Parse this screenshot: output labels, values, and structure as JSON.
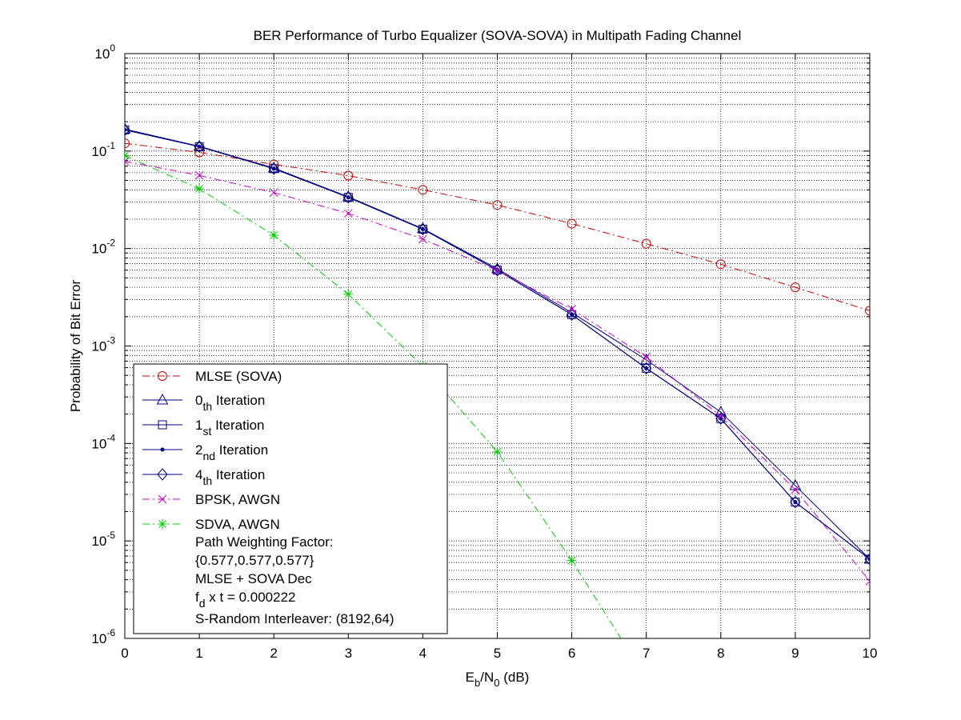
{
  "chart_data": {
    "type": "line",
    "title": "BER Performance of Turbo Equalizer (SOVA-SOVA) in Multipath Fading Channel",
    "xlabel": {
      "main": "E",
      "sub1": "b",
      "mid": "/N",
      "sub2": "0",
      "tail": " (dB)"
    },
    "ylabel": "Probability of Bit Error",
    "xlim": [
      0,
      10
    ],
    "ylim": [
      1e-06,
      1
    ],
    "yscale": "log",
    "grid": true,
    "legend_position": "lower-left",
    "x_ticks": [
      "0",
      "1",
      "2",
      "3",
      "4",
      "5",
      "6",
      "7",
      "8",
      "9",
      "10"
    ],
    "y_ticks": [
      {
        "base": "10",
        "exp": "0",
        "value": 1
      },
      {
        "base": "10",
        "exp": "-1",
        "value": 0.1
      },
      {
        "base": "10",
        "exp": "-2",
        "value": 0.01
      },
      {
        "base": "10",
        "exp": "-3",
        "value": 0.001
      },
      {
        "base": "10",
        "exp": "-4",
        "value": 0.0001
      },
      {
        "base": "10",
        "exp": "-5",
        "value": 1e-05
      },
      {
        "base": "10",
        "exp": "-6",
        "value": 1e-06
      }
    ],
    "series": [
      {
        "name": "MLSE (SOVA)",
        "color": "#cc0000",
        "dash": "dashdot",
        "marker": "circle",
        "x": [
          0,
          1,
          2,
          3,
          4,
          5,
          6,
          7,
          8,
          9,
          10
        ],
        "y": [
          0.12,
          0.097,
          0.073,
          0.056,
          0.04,
          0.028,
          0.018,
          0.0112,
          0.0069,
          0.004,
          0.0023
        ]
      },
      {
        "name": "0th Iteration",
        "label_main": "0",
        "label_sub": "th",
        "label_tail": " Iteration",
        "color": "#000080",
        "dash": "solid",
        "marker": "triangle",
        "x": [
          0,
          1,
          2,
          3,
          4,
          5,
          6,
          7,
          8,
          9,
          10
        ],
        "y": [
          0.168,
          0.112,
          0.067,
          0.034,
          0.016,
          0.0062,
          0.0022,
          0.00072,
          0.00021,
          3.7e-05,
          6.5e-06
        ]
      },
      {
        "name": "1st Iteration",
        "label_main": "1",
        "label_sub": "st",
        "label_tail": " Iteration",
        "color": "#000080",
        "dash": "solid",
        "marker": "square",
        "x": [
          0,
          1,
          2,
          3,
          4,
          5,
          6,
          7,
          8,
          9,
          10
        ],
        "y": [
          0.165,
          0.111,
          0.066,
          0.0335,
          0.0158,
          0.006,
          0.0021,
          0.00059,
          0.00018,
          2.5e-05,
          6.5e-06
        ]
      },
      {
        "name": "2nd Iteration",
        "label_main": "2",
        "label_sub": "nd",
        "label_tail": " Iteration",
        "color": "#000080",
        "dash": "solid",
        "marker": "dot",
        "x": [
          0,
          1,
          2,
          3,
          4,
          5,
          6,
          7,
          8,
          9,
          10
        ],
        "y": [
          0.165,
          0.111,
          0.066,
          0.0335,
          0.0158,
          0.006,
          0.0021,
          0.00059,
          0.00018,
          2.5e-05,
          6.5e-06
        ]
      },
      {
        "name": "4th Iteration",
        "label_main": "4",
        "label_sub": "th",
        "label_tail": " Iteration",
        "color": "#000080",
        "dash": "solid",
        "marker": "diamond",
        "x": [
          0,
          1,
          2,
          3,
          4,
          5,
          6,
          7,
          8,
          9,
          10
        ],
        "y": [
          0.165,
          0.111,
          0.066,
          0.0335,
          0.0158,
          0.006,
          0.0021,
          0.00059,
          0.00018,
          2.5e-05,
          6.5e-06
        ]
      },
      {
        "name": "BPSK, AWGN",
        "color": "#cc00cc",
        "dash": "dashdot",
        "marker": "x",
        "x": [
          0,
          1,
          2,
          3,
          4,
          5,
          6,
          7,
          8,
          9,
          10
        ],
        "y": [
          0.0786,
          0.0563,
          0.0375,
          0.0229,
          0.0125,
          0.00595,
          0.00239,
          0.000773,
          0.000191,
          3.36e-05,
          3.87e-06
        ]
      },
      {
        "name": "SDVA, AWGN",
        "color": "#00cc00",
        "dash": "dashdot",
        "marker": "star",
        "x": [
          0,
          1,
          2,
          3,
          4,
          5,
          6,
          6.66
        ],
        "y": [
          0.09,
          0.041,
          0.0137,
          0.0034,
          0.00062,
          8.2e-05,
          6.3e-06,
          1e-06
        ]
      }
    ],
    "legend_notes": [
      "Path Weighting Factor:",
      "{0.577,0.577,0.577}",
      "MLSE + SOVA Dec"
    ],
    "legend_note_fd": {
      "main": "f",
      "sub": "d",
      "tail": " x t = 0.000222"
    },
    "legend_note_last": "S-Random Interleaver: (8192,64)"
  }
}
